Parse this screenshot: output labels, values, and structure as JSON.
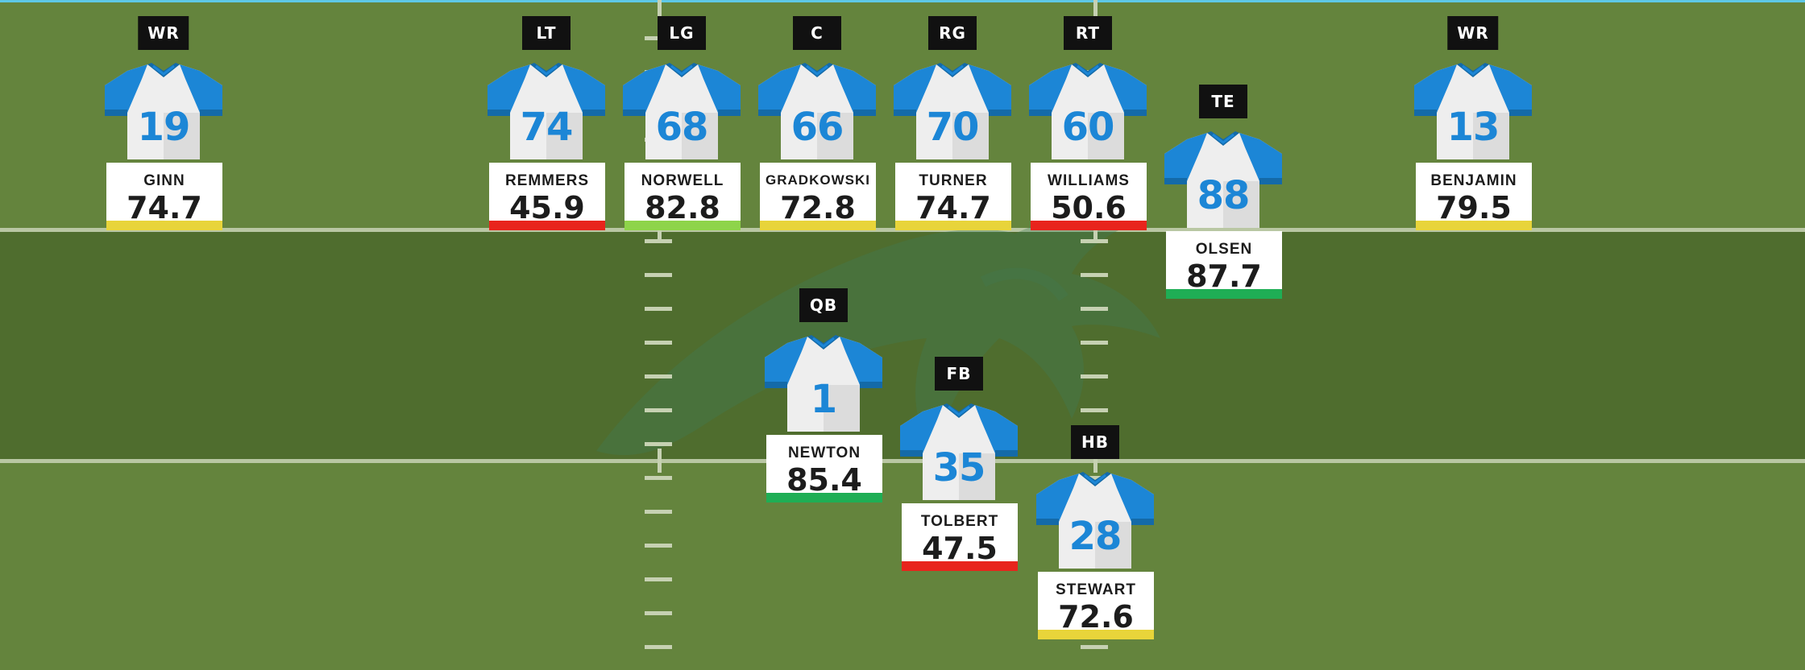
{
  "colors": {
    "accent_line": "#5ec8e6",
    "jersey_blue": "#1c86d6",
    "jersey_white": "#eeeeee",
    "grade_red": "#e8241c",
    "grade_yellow": "#e8d43a",
    "grade_lightgreen": "#8ed44a",
    "grade_green": "#1fae55"
  },
  "players": [
    {
      "position": "WR",
      "number": "19",
      "name": "GINN",
      "grade": "74.7",
      "grade_color": "#e8d43a"
    },
    {
      "position": "LT",
      "number": "74",
      "name": "REMMERS",
      "grade": "45.9",
      "grade_color": "#e8241c"
    },
    {
      "position": "LG",
      "number": "68",
      "name": "NORWELL",
      "grade": "82.8",
      "grade_color": "#8ed44a"
    },
    {
      "position": "C",
      "number": "66",
      "name": "GRADKOWSKI",
      "grade": "72.8",
      "grade_color": "#e8d43a"
    },
    {
      "position": "RG",
      "number": "70",
      "name": "TURNER",
      "grade": "74.7",
      "grade_color": "#e8d43a"
    },
    {
      "position": "RT",
      "number": "60",
      "name": "WILLIAMS",
      "grade": "50.6",
      "grade_color": "#e8241c"
    },
    {
      "position": "TE",
      "number": "88",
      "name": "OLSEN",
      "grade": "87.7",
      "grade_color": "#1fae55"
    },
    {
      "position": "WR",
      "number": "13",
      "name": "BENJAMIN",
      "grade": "79.5",
      "grade_color": "#e8d43a"
    },
    {
      "position": "QB",
      "number": "1",
      "name": "NEWTON",
      "grade": "85.4",
      "grade_color": "#1fae55"
    },
    {
      "position": "FB",
      "number": "35",
      "name": "TOLBERT",
      "grade": "47.5",
      "grade_color": "#e8241c"
    },
    {
      "position": "HB",
      "number": "28",
      "name": "STEWART",
      "grade": "72.6",
      "grade_color": "#e8d43a"
    }
  ],
  "icons": {
    "jersey": "jersey-icon",
    "logo": "panther-logo"
  }
}
